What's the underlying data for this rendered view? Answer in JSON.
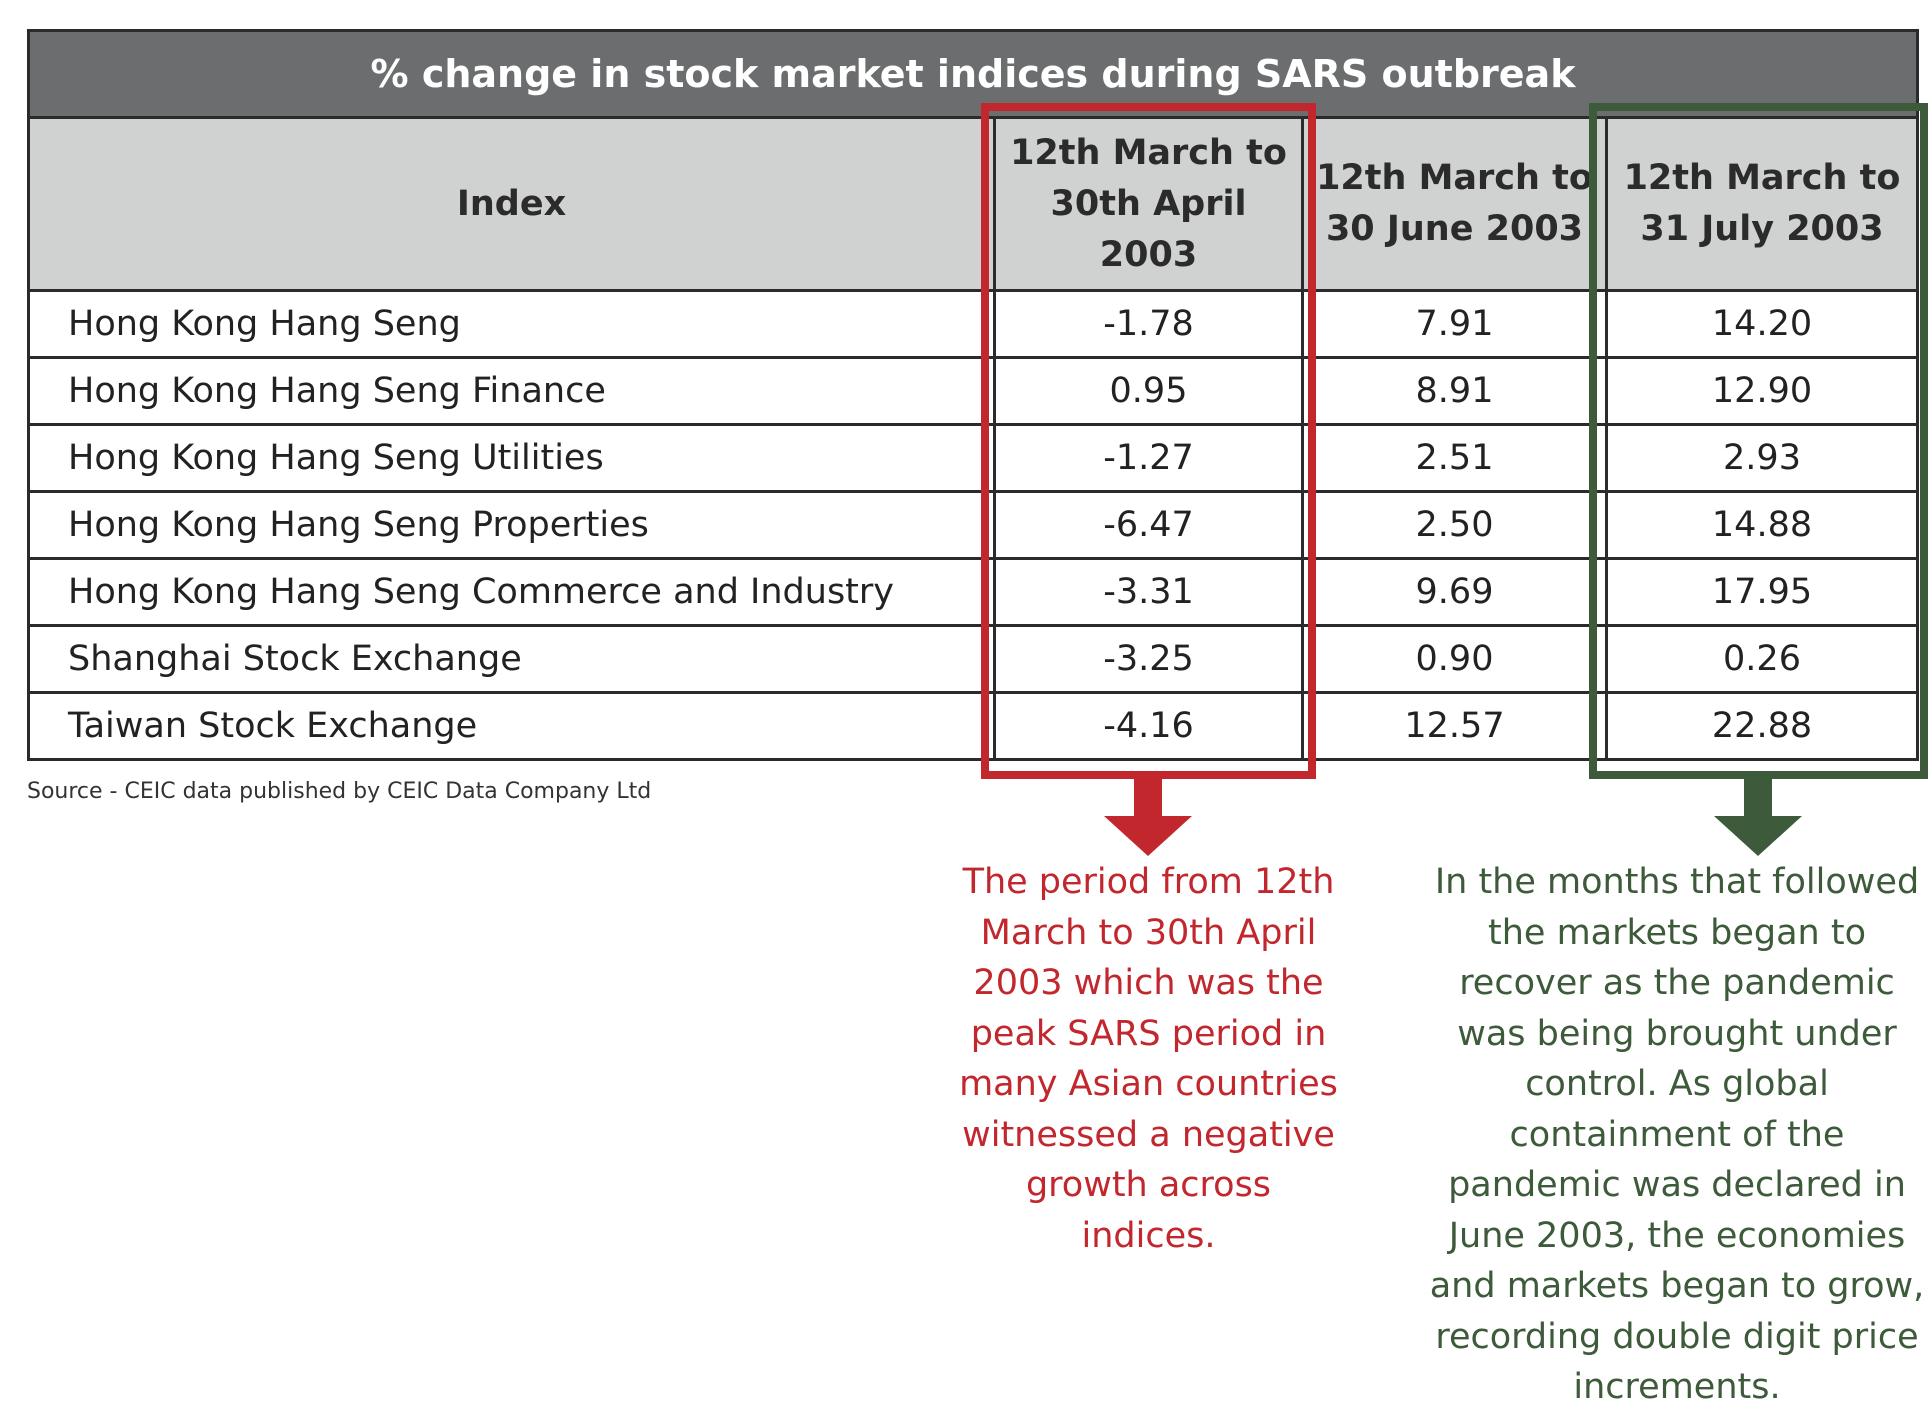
{
  "colors": {
    "title_bg": "#6b6d6f",
    "header_bg": "#d0d1d1",
    "highlight_red": "#c1272d",
    "highlight_green": "#3d5a3a"
  },
  "source": "Source -  CEIC data published by CEIC Data Company Ltd",
  "annotations": {
    "red": "The period from 12th March to 30th April 2003 which was the peak SARS period in many Asian countries witnessed a negative growth across indices.",
    "green": "In the months that followed the markets began to recover as the pandemic was being brought under control. As global containment of the pandemic was declared in June 2003, the economies and markets began to grow, recording double digit price increments."
  },
  "chart_data": {
    "type": "table",
    "title": "% change in stock market indices during SARS outbreak",
    "index_header": "Index",
    "columns": [
      "12th March to 30th April 2003",
      "12th March to 30 June 2003",
      "12th March to 31 July 2003"
    ],
    "rows": [
      {
        "index": "Hong Kong Hang Seng",
        "values": [
          "-1.78",
          "7.91",
          "14.20"
        ]
      },
      {
        "index": "Hong Kong Hang Seng Finance",
        "values": [
          "0.95",
          "8.91",
          "12.90"
        ]
      },
      {
        "index": "Hong Kong Hang Seng Utilities",
        "values": [
          "-1.27",
          "2.51",
          "2.93"
        ]
      },
      {
        "index": "Hong Kong Hang Seng Properties",
        "values": [
          "-6.47",
          "2.50",
          "14.88"
        ]
      },
      {
        "index": "Hong Kong Hang Seng Commerce and Industry",
        "values": [
          "-3.31",
          "9.69",
          "17.95"
        ]
      },
      {
        "index": "Shanghai Stock Exchange",
        "values": [
          "-3.25",
          "0.90",
          "0.26"
        ]
      },
      {
        "index": "Taiwan Stock Exchange",
        "values": [
          "-4.16",
          "12.57",
          "22.88"
        ]
      }
    ],
    "highlighted_columns": [
      {
        "column": 0,
        "color": "#c1272d"
      },
      {
        "column": 2,
        "color": "#3d5a3a"
      }
    ]
  }
}
